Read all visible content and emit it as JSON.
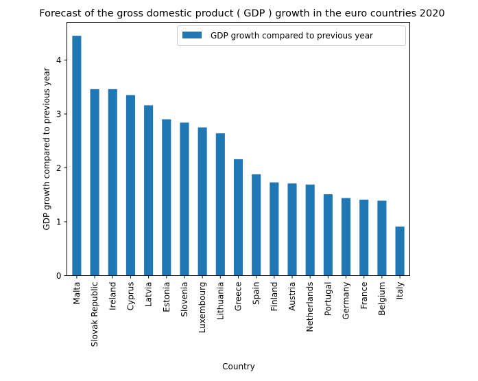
{
  "chart_data": {
    "type": "bar",
    "title": "Forecast of the gross domestic product ( GDP ) growth in the euro countries 2020",
    "xlabel": "Country",
    "ylabel": "GDP growth compared to previous year",
    "categories": [
      "Malta",
      "Slovak Republic",
      "Ireland",
      "Cyprus",
      "Latvia",
      "Estonia",
      "Slovenia",
      "Luxembourg",
      "Lithuania",
      "Greece",
      "Spain",
      "Finland",
      "Austria",
      "Netherlands",
      "Portugal",
      "Germany",
      "France",
      "Belgium",
      "Italy"
    ],
    "series": [
      {
        "name": "GDP growth compared to previous year",
        "values": [
          4.45,
          3.46,
          3.46,
          3.35,
          3.16,
          2.9,
          2.84,
          2.75,
          2.64,
          2.16,
          1.88,
          1.73,
          1.71,
          1.69,
          1.51,
          1.44,
          1.41,
          1.39,
          0.91
        ]
      }
    ],
    "ylim": [
      0,
      4.7
    ],
    "yticks": [
      0,
      1,
      2,
      3,
      4
    ],
    "grid": false,
    "legend_position": "top-right",
    "colors": {
      "bar": "#1f77b4"
    }
  }
}
